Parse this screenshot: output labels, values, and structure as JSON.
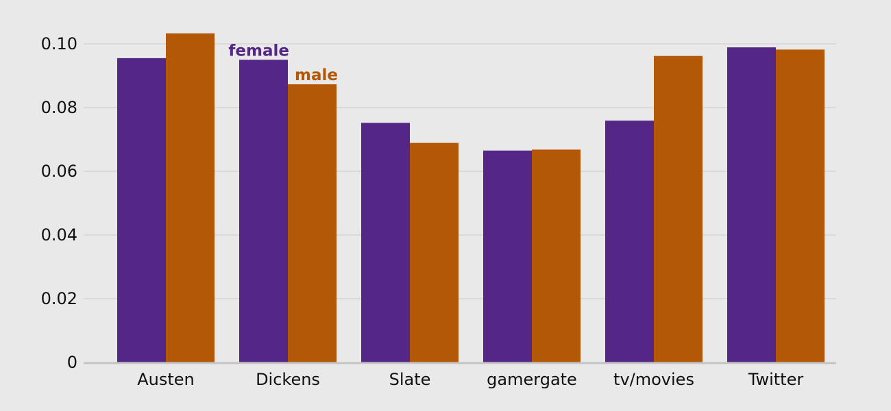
{
  "chart_data": {
    "type": "bar",
    "title": "",
    "xlabel": "",
    "ylabel": "",
    "ylim": [
      0,
      0.1
    ],
    "y_ticks": [
      "0",
      "0.02",
      "0.04",
      "0.06",
      "0.08",
      "0.10"
    ],
    "y_tick_values": [
      0,
      0.02,
      0.04,
      0.06,
      0.08,
      0.1
    ],
    "grid": true,
    "legend": "inline labels above Dickens bars",
    "categories": [
      "Austen",
      "Dickens",
      "Slate",
      "gamergate",
      "tv/movies",
      "Twitter"
    ],
    "series": [
      {
        "name": "female",
        "color": "#542787",
        "values": [
          0.0955,
          0.095,
          0.0752,
          0.0665,
          0.0759,
          0.0989
        ]
      },
      {
        "name": "male",
        "color": "#b35806",
        "values": [
          0.1033,
          0.0873,
          0.0689,
          0.0668,
          0.0962,
          0.0982
        ]
      }
    ],
    "series_label_category": "Dickens"
  }
}
